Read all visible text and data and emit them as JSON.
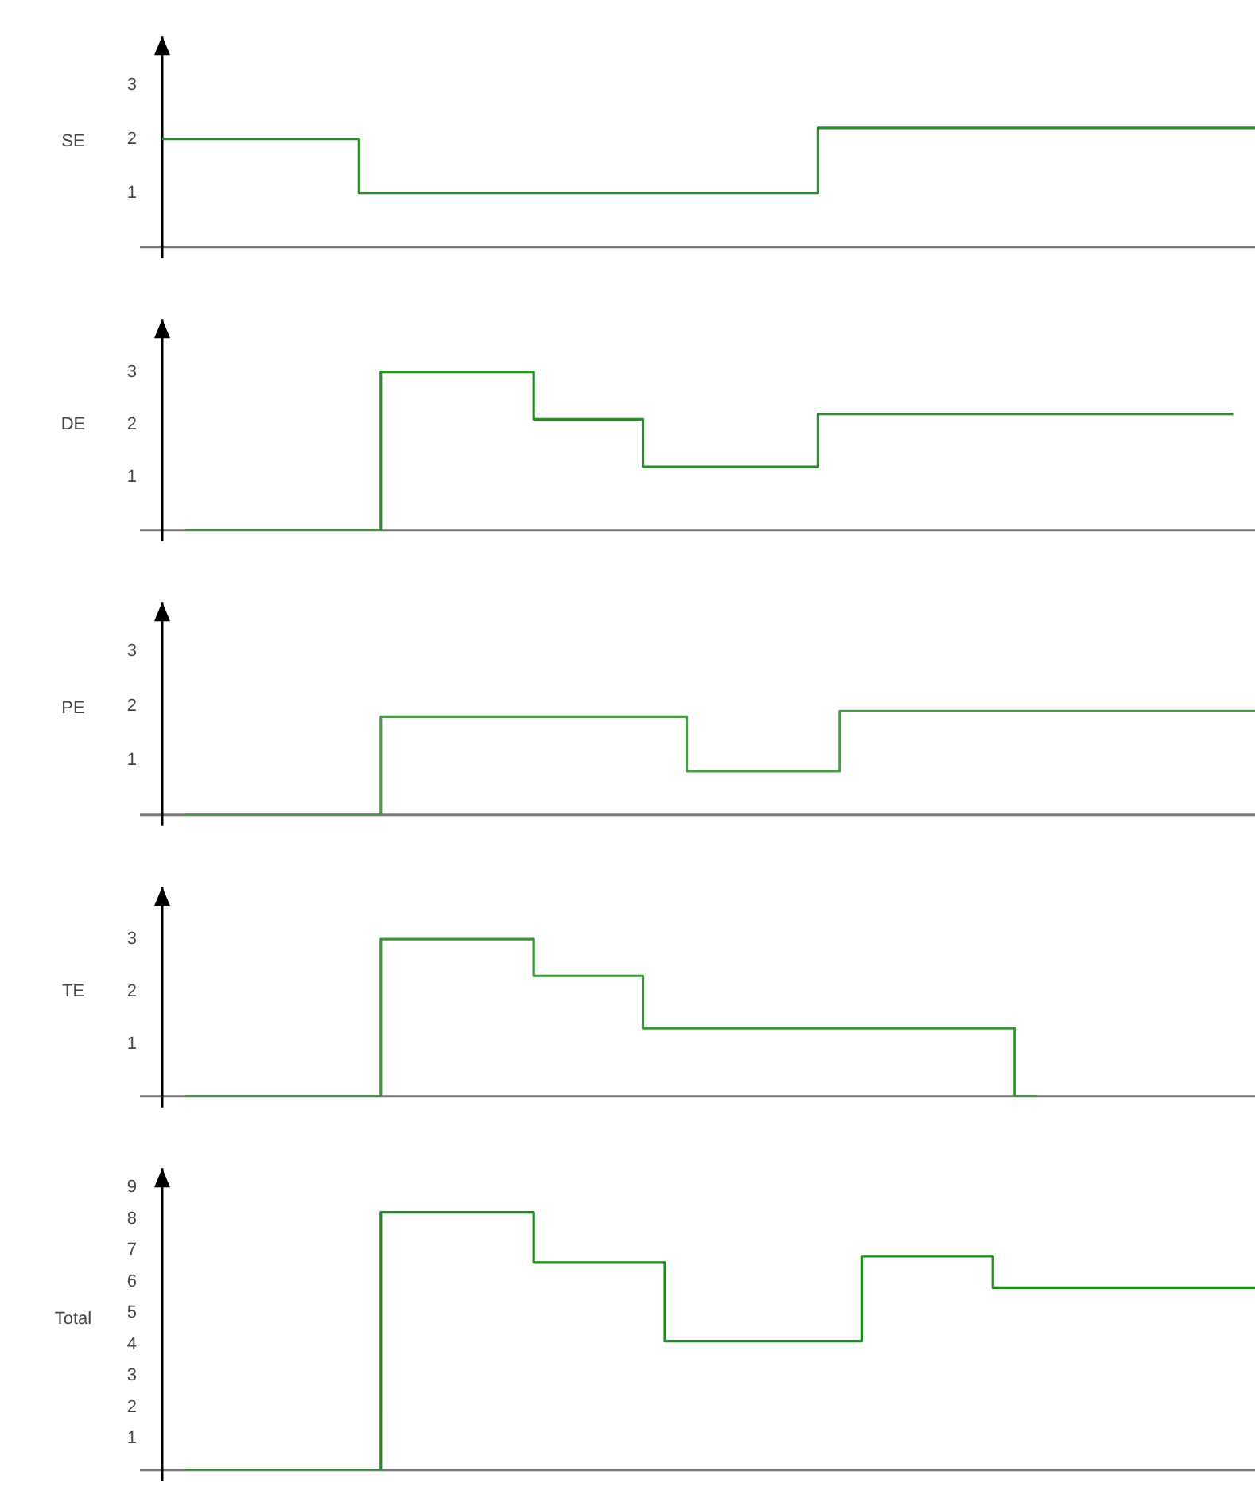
{
  "chart_data": [
    {
      "type": "step",
      "ylabel": "SE",
      "tick_labels": "y",
      "color": "#2a8c2a",
      "ylim": [
        0,
        3.9
      ],
      "yticks": [
        1,
        2,
        3
      ],
      "categories": [
        null,
        null,
        null,
        null,
        null,
        null,
        null,
        null,
        null,
        null,
        null,
        null,
        null,
        null,
        null,
        null,
        null,
        null,
        null,
        null,
        null,
        null,
        null,
        null,
        null,
        null,
        null,
        null,
        null,
        null,
        null,
        null,
        null,
        null,
        null,
        null,
        null,
        null,
        null,
        null,
        null,
        null,
        null,
        null,
        null,
        null,
        null,
        null,
        null,
        null,
        null
      ],
      "values": [
        2,
        2,
        2,
        2,
        2,
        2,
        2,
        2,
        2,
        2,
        1,
        1,
        1,
        1,
        1,
        1,
        1,
        1,
        1,
        1,
        1,
        1,
        1,
        1,
        1,
        1,
        1,
        1,
        1,
        1,
        1,
        2.2,
        2.2,
        2.2,
        2.2,
        2.2,
        2.2,
        2.2,
        2.2,
        2.2,
        2.2,
        2.2,
        2.2,
        2.2,
        2.2,
        2.2,
        2.2,
        2.2,
        2.2,
        2.2,
        2.2
      ]
    },
    {
      "type": "step",
      "ylabel": "DE",
      "tick_labels": "y",
      "color": "#2a8c2a",
      "ylim": [
        0,
        4
      ],
      "yticks": [
        1,
        2,
        3
      ],
      "categories": [
        null,
        null,
        null,
        null,
        null,
        null,
        null,
        null,
        null,
        null,
        null,
        null,
        null,
        null,
        null,
        null,
        null,
        null,
        null,
        null,
        null,
        null,
        null,
        null,
        null,
        null,
        null,
        null,
        null,
        null,
        null,
        null,
        null,
        null,
        null,
        null,
        null,
        null,
        null,
        null,
        null,
        null,
        null,
        null,
        null,
        null,
        null,
        null,
        null,
        null,
        null
      ],
      "values": [
        null,
        0,
        0,
        0,
        0,
        0,
        0,
        0,
        0,
        0,
        0,
        3,
        3,
        3,
        3,
        3,
        3,
        3,
        2.1,
        2.1,
        2.1,
        2.1,
        2.1,
        1.2,
        1.2,
        1.2,
        1.2,
        1.2,
        1.2,
        1.2,
        1.2,
        2.2,
        2.2,
        2.2,
        2.2,
        2.2,
        2.2,
        2.2,
        2.2,
        2.2,
        2.2,
        2.2,
        2.2,
        2.2,
        2.2,
        2.2,
        2.2,
        2.2,
        2.2,
        2.2,
        null
      ]
    },
    {
      "type": "step",
      "ylabel": "PE",
      "tick_labels": "y",
      "color": "#4a9a4a",
      "ylim": [
        0,
        3.9
      ],
      "yticks": [
        1,
        2,
        3
      ],
      "categories": [
        null,
        null,
        null,
        null,
        null,
        null,
        null,
        null,
        null,
        null,
        null,
        null,
        null,
        null,
        null,
        null,
        null,
        null,
        null,
        null,
        null,
        null,
        null,
        null,
        null,
        null,
        null,
        null,
        null,
        null,
        null,
        null,
        null,
        null,
        null,
        null,
        null,
        null,
        null,
        null,
        null,
        null,
        null,
        null,
        null,
        null,
        null,
        null,
        null,
        null,
        null
      ],
      "values": [
        null,
        0,
        0,
        0,
        0,
        0,
        0,
        0,
        0,
        0,
        0,
        1.8,
        1.8,
        1.8,
        1.8,
        1.8,
        1.8,
        1.8,
        1.8,
        1.8,
        1.8,
        1.8,
        1.8,
        1.8,
        1.8,
        0.8,
        0.8,
        0.8,
        0.8,
        0.8,
        0.8,
        0.8,
        1.9,
        1.9,
        1.9,
        1.9,
        1.9,
        1.9,
        1.9,
        1.9,
        1.9,
        1.9,
        1.9,
        1.9,
        1.9,
        1.9,
        1.9,
        1.9,
        1.9,
        1.9,
        1.9
      ]
    },
    {
      "type": "step",
      "ylabel": "TE",
      "tick_labels": "y",
      "color": "#3a943a",
      "ylim": [
        0,
        4
      ],
      "yticks": [
        1,
        2,
        3
      ],
      "categories": [
        null,
        null,
        null,
        null,
        null,
        null,
        null,
        null,
        null,
        null,
        null,
        null,
        null,
        null,
        null,
        null,
        null,
        null,
        null,
        null,
        null,
        null,
        null,
        null,
        null,
        null,
        null,
        null,
        null,
        null,
        null,
        null,
        null,
        null,
        null,
        null,
        null,
        null,
        null,
        null,
        null,
        null,
        null,
        null,
        null,
        null,
        null,
        null,
        null,
        null,
        null
      ],
      "values": [
        null,
        0,
        0,
        0,
        0,
        0,
        0,
        0,
        0,
        0,
        0,
        3,
        3,
        3,
        3,
        3,
        3,
        3,
        2.3,
        2.3,
        2.3,
        2.3,
        2.3,
        1.3,
        1.3,
        1.3,
        1.3,
        1.3,
        1.3,
        1.3,
        1.3,
        1.3,
        1.3,
        1.3,
        1.3,
        1.3,
        1.3,
        1.3,
        1.3,
        1.3,
        0,
        null,
        null,
        null,
        null,
        null,
        null,
        null,
        null,
        null,
        null
      ]
    },
    {
      "type": "step",
      "ylabel": "Total",
      "tick_labels": "y",
      "color": "#1f8a1f",
      "ylim": [
        0,
        9.6
      ],
      "yticks": [
        1,
        2,
        3,
        4,
        5,
        6,
        7,
        8,
        9
      ],
      "categories": [
        null,
        null,
        null,
        null,
        null,
        null,
        null,
        null,
        null,
        null,
        null,
        null,
        null,
        null,
        null,
        null,
        null,
        null,
        null,
        null,
        null,
        null,
        null,
        null,
        null,
        null,
        null,
        null,
        null,
        null,
        null,
        null,
        null,
        null,
        null,
        null,
        null,
        null,
        null,
        null,
        null,
        null,
        null,
        null,
        null,
        null,
        null,
        null,
        null,
        null,
        null
      ],
      "values": [
        null,
        0,
        0,
        0,
        0,
        0,
        0,
        0,
        0,
        0,
        0,
        8.2,
        8.2,
        8.2,
        8.2,
        8.2,
        8.2,
        8.2,
        6.6,
        6.6,
        6.6,
        6.6,
        6.6,
        6.6,
        4.1,
        4.1,
        4.1,
        4.1,
        4.1,
        4.1,
        4.1,
        4.1,
        4.1,
        6.8,
        6.8,
        6.8,
        6.8,
        6.8,
        6.8,
        5.8,
        5.8,
        5.8,
        5.8,
        5.8,
        5.8,
        5.8,
        5.8,
        5.8,
        5.8,
        5.8,
        5.8
      ]
    }
  ]
}
